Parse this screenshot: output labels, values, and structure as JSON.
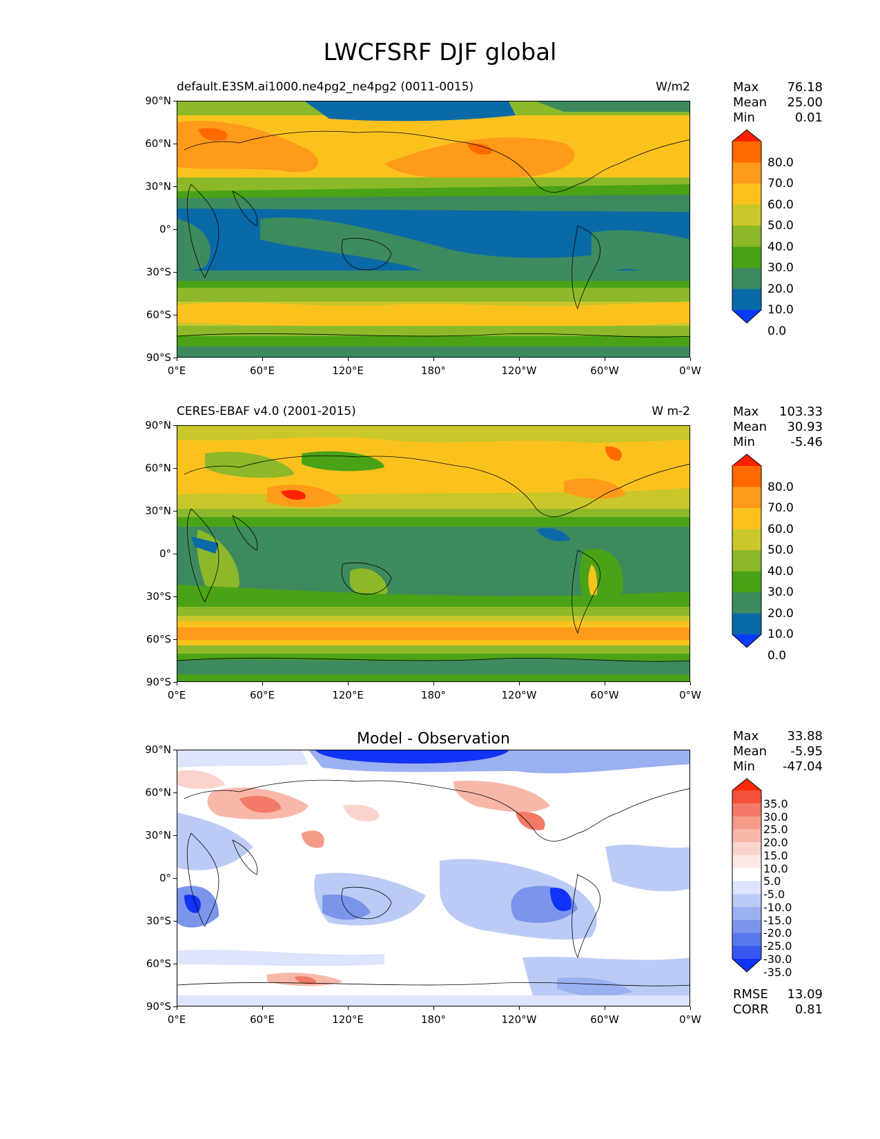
{
  "title": "LWCFSRF DJF global",
  "axes": {
    "lat_labels": [
      "90°N",
      "60°N",
      "30°N",
      "0°",
      "30°S",
      "60°S",
      "90°S"
    ],
    "lon_labels": [
      "0°E",
      "60°E",
      "120°E",
      "180°",
      "120°W",
      "60°W",
      "0°W"
    ]
  },
  "panels": [
    {
      "title_left": "default.E3SM.ai1000.ne4pg2_ne4pg2 (0011-0015)",
      "title_right": "W/m2",
      "stats": [
        {
          "label": "Max",
          "value": "76.18"
        },
        {
          "label": "Mean",
          "value": "25.00"
        },
        {
          "label": "Min",
          "value": "0.01"
        }
      ],
      "colorbar": {
        "labels": [
          "80.0",
          "70.0",
          "60.0",
          "50.0",
          "40.0",
          "30.0",
          "20.0",
          "10.0",
          "0.0"
        ],
        "colors": [
          "#ff2200",
          "#ff6a00",
          "#ff9a1a",
          "#fbc21e",
          "#c9c72a",
          "#8cb82a",
          "#4aa317",
          "#3d8a5e",
          "#0a6aa8",
          "#0a3cff"
        ]
      }
    },
    {
      "title_left": "CERES-EBAF v4.0 (2001-2015)",
      "title_right": "W m-2",
      "stats": [
        {
          "label": "Max",
          "value": "103.33"
        },
        {
          "label": "Mean",
          "value": "30.93"
        },
        {
          "label": "Min",
          "value": "-5.46"
        }
      ],
      "colorbar": {
        "labels": [
          "80.0",
          "70.0",
          "60.0",
          "50.0",
          "40.0",
          "30.0",
          "20.0",
          "10.0",
          "0.0"
        ],
        "colors": [
          "#ff2200",
          "#ff6a00",
          "#ff9a1a",
          "#fbc21e",
          "#c9c72a",
          "#8cb82a",
          "#4aa317",
          "#3d8a5e",
          "#0a6aa8",
          "#0a3cff"
        ]
      }
    },
    {
      "title_center": "Model - Observation",
      "stats": [
        {
          "label": "Max",
          "value": "33.88"
        },
        {
          "label": "Mean",
          "value": "-5.95"
        },
        {
          "label": "Min",
          "value": "-47.04"
        }
      ],
      "extra_stats": [
        {
          "label": "RMSE",
          "value": "13.09"
        },
        {
          "label": "CORR",
          "value": "0.81"
        }
      ],
      "colorbar": {
        "labels": [
          "35.0",
          "30.0",
          "25.0",
          "20.0",
          "15.0",
          "10.0",
          "5.0",
          "-5.0",
          "-10.0",
          "-15.0",
          "-20.0",
          "-25.0",
          "-30.0",
          "-35.0"
        ],
        "colors": [
          "#ff2a0a",
          "#f5503a",
          "#f27a66",
          "#f49a88",
          "#f7b8aa",
          "#fad4cc",
          "#fde9e5",
          "#ffffff",
          "#dde4fb",
          "#bccbf6",
          "#9bb0f1",
          "#7b95ec",
          "#5878ea",
          "#3758ef",
          "#1033f5"
        ]
      }
    }
  ]
}
